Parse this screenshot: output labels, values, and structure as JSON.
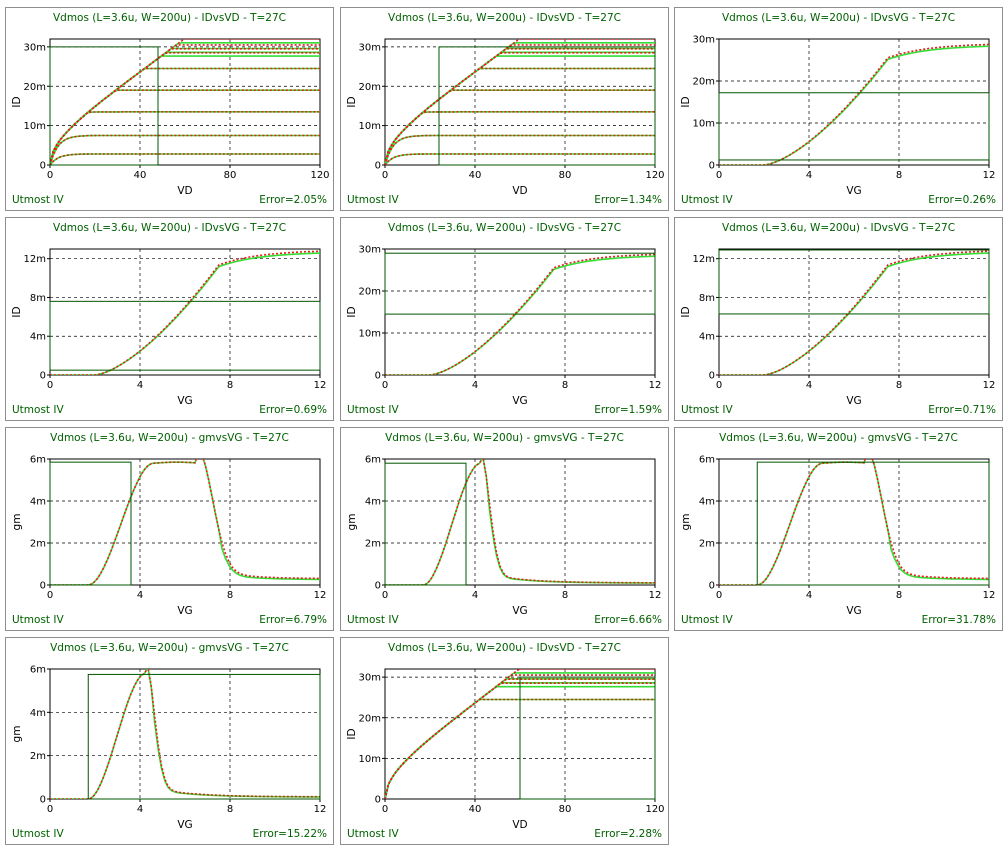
{
  "footer_left": "Utmost IV",
  "colors": {
    "measured": "#33dd33",
    "simulated": "#e81c1c",
    "roi_box": "#005500",
    "text": "#006000"
  },
  "chart_data": [
    {
      "type": "line",
      "title": "Vdmos (L=3.6u, W=200u) - IDvsVD - T=27C",
      "xlabel": "VD",
      "ylabel": "ID",
      "xlim": [
        0,
        120
      ],
      "ylim": [
        0,
        32
      ],
      "xticks": [
        "0",
        "40",
        "80",
        "120"
      ],
      "xtick_values": [
        0,
        40,
        80,
        120
      ],
      "yticks": [
        "0",
        "10m",
        "20m",
        "30m"
      ],
      "ytick_values": [
        0,
        10,
        20,
        30
      ],
      "roi": {
        "x": [
          0,
          48
        ],
        "y": [
          0,
          30
        ]
      },
      "error": "Error=2.05%",
      "curve": "idvd"
    },
    {
      "type": "line",
      "title": "Vdmos (L=3.6u, W=200u) - IDvsVD - T=27C",
      "xlabel": "VD",
      "ylabel": "ID",
      "xlim": [
        0,
        120
      ],
      "ylim": [
        0,
        32
      ],
      "xticks": [
        "0",
        "40",
        "80",
        "120"
      ],
      "xtick_values": [
        0,
        40,
        80,
        120
      ],
      "yticks": [
        "0",
        "10m",
        "20m",
        "30m"
      ],
      "ytick_values": [
        0,
        10,
        20,
        30
      ],
      "roi": {
        "x": [
          24,
          120
        ],
        "y": [
          0,
          30
        ]
      },
      "error": "Error=1.34%",
      "curve": "idvd"
    },
    {
      "type": "line",
      "title": "Vdmos (L=3.6u, W=200u) - IDvsVG - T=27C",
      "xlabel": "VG",
      "ylabel": "ID",
      "xlim": [
        0,
        12
      ],
      "ylim": [
        0,
        30
      ],
      "xticks": [
        "0",
        "4",
        "8",
        "12"
      ],
      "xtick_values": [
        0,
        4,
        8,
        12
      ],
      "yticks": [
        "0",
        "10m",
        "20m",
        "30m"
      ],
      "ytick_values": [
        0,
        10,
        20,
        30
      ],
      "roi": {
        "x": [
          0,
          12
        ],
        "y": [
          1.2,
          17.2
        ]
      },
      "error": "Error=0.26%",
      "curve": "idvg30"
    },
    {
      "type": "line",
      "title": "Vdmos (L=3.6u, W=200u) - IDvsVG - T=27C",
      "xlabel": "VG",
      "ylabel": "ID",
      "xlim": [
        0,
        12
      ],
      "ylim": [
        0,
        13
      ],
      "xticks": [
        "0",
        "4",
        "8",
        "12"
      ],
      "xtick_values": [
        0,
        4,
        8,
        12
      ],
      "yticks": [
        "0",
        "4m",
        "8m",
        "12m"
      ],
      "ytick_values": [
        0,
        4,
        8,
        12
      ],
      "roi": {
        "x": [
          0,
          12
        ],
        "y": [
          0.5,
          7.6
        ]
      },
      "error": "Error=0.69%",
      "curve": "idvg13"
    },
    {
      "type": "line",
      "title": "Vdmos (L=3.6u, W=200u) - IDvsVG - T=27C",
      "xlabel": "VG",
      "ylabel": "ID",
      "xlim": [
        0,
        12
      ],
      "ylim": [
        0,
        30
      ],
      "xticks": [
        "0",
        "4",
        "8",
        "12"
      ],
      "xtick_values": [
        0,
        4,
        8,
        12
      ],
      "yticks": [
        "0",
        "10m",
        "20m",
        "30m"
      ],
      "ytick_values": [
        0,
        10,
        20,
        30
      ],
      "roi": {
        "x": [
          0,
          12
        ],
        "y": [
          14.5,
          29.0
        ]
      },
      "error": "Error=1.59%",
      "curve": "idvg30"
    },
    {
      "type": "line",
      "title": "Vdmos (L=3.6u, W=200u) - IDvsVG - T=27C",
      "xlabel": "VG",
      "ylabel": "ID",
      "xlim": [
        0,
        12
      ],
      "ylim": [
        0,
        13
      ],
      "xticks": [
        "0",
        "4",
        "8",
        "12"
      ],
      "xtick_values": [
        0,
        4,
        8,
        12
      ],
      "yticks": [
        "0",
        "4m",
        "8m",
        "12m"
      ],
      "ytick_values": [
        0,
        4,
        8,
        12
      ],
      "roi": {
        "x": [
          0,
          12
        ],
        "y": [
          6.3,
          12.9
        ]
      },
      "error": "Error=0.71%",
      "curve": "idvg13"
    },
    {
      "type": "line",
      "title": "Vdmos (L=3.6u, W=200u) - gmvsVG - T=27C",
      "xlabel": "VG",
      "ylabel": "gm",
      "xlim": [
        0,
        12
      ],
      "ylim": [
        0,
        6
      ],
      "xticks": [
        "0",
        "4",
        "8",
        "12"
      ],
      "xtick_values": [
        0,
        4,
        8,
        12
      ],
      "yticks": [
        "0",
        "2m",
        "4m",
        "6m"
      ],
      "ytick_values": [
        0,
        2,
        4,
        6
      ],
      "roi": {
        "x": [
          0,
          3.6
        ],
        "y": [
          0,
          5.85
        ]
      },
      "error": "Error=6.79%",
      "curve": "gmwide"
    },
    {
      "type": "line",
      "title": "Vdmos (L=3.6u, W=200u) - gmvsVG - T=27C",
      "xlabel": "VG",
      "ylabel": "gm",
      "xlim": [
        0,
        12
      ],
      "ylim": [
        0,
        6
      ],
      "xticks": [
        "0",
        "4",
        "8",
        "12"
      ],
      "xtick_values": [
        0,
        4,
        8,
        12
      ],
      "yticks": [
        "0",
        "2m",
        "4m",
        "6m"
      ],
      "ytick_values": [
        0,
        2,
        4,
        6
      ],
      "roi": {
        "x": [
          0,
          3.6
        ],
        "y": [
          0,
          5.8
        ]
      },
      "error": "Error=6.66%",
      "curve": "gmnarrow"
    },
    {
      "type": "line",
      "title": "Vdmos (L=3.6u, W=200u) - gmvsVG - T=27C",
      "xlabel": "VG",
      "ylabel": "gm",
      "xlim": [
        0,
        12
      ],
      "ylim": [
        0,
        6
      ],
      "xticks": [
        "0",
        "4",
        "8",
        "12"
      ],
      "xtick_values": [
        0,
        4,
        8,
        12
      ],
      "yticks": [
        "0",
        "2m",
        "4m",
        "6m"
      ],
      "ytick_values": [
        0,
        2,
        4,
        6
      ],
      "roi": {
        "x": [
          1.7,
          12
        ],
        "y": [
          0,
          5.85
        ]
      },
      "error": "Error=31.78%",
      "curve": "gmwide"
    },
    {
      "type": "line",
      "title": "Vdmos (L=3.6u, W=200u) - gmvsVG - T=27C",
      "xlabel": "VG",
      "ylabel": "gm",
      "xlim": [
        0,
        12
      ],
      "ylim": [
        0,
        6
      ],
      "xticks": [
        "0",
        "4",
        "8",
        "12"
      ],
      "xtick_values": [
        0,
        4,
        8,
        12
      ],
      "yticks": [
        "0",
        "2m",
        "4m",
        "6m"
      ],
      "ytick_values": [
        0,
        2,
        4,
        6
      ],
      "roi": {
        "x": [
          1.7,
          12
        ],
        "y": [
          0,
          5.75
        ]
      },
      "error": "Error=15.22%",
      "curve": "gmnarrow"
    },
    {
      "type": "line",
      "title": "Vdmos (L=3.6u, W=200u) - IDvsVD - T=27C",
      "xlabel": "VD",
      "ylabel": "ID",
      "xlim": [
        0,
        120
      ],
      "ylim": [
        0,
        32
      ],
      "xticks": [
        "0",
        "40",
        "80",
        "120"
      ],
      "xtick_values": [
        0,
        40,
        80,
        120
      ],
      "yticks": [
        "0",
        "10m",
        "20m",
        "30m"
      ],
      "ytick_values": [
        0,
        10,
        20,
        30
      ],
      "roi": {
        "x": [
          60,
          120
        ],
        "y": [
          0,
          30
        ]
      },
      "error": "Error=2.28%",
      "curve": "idvdsat"
    }
  ]
}
